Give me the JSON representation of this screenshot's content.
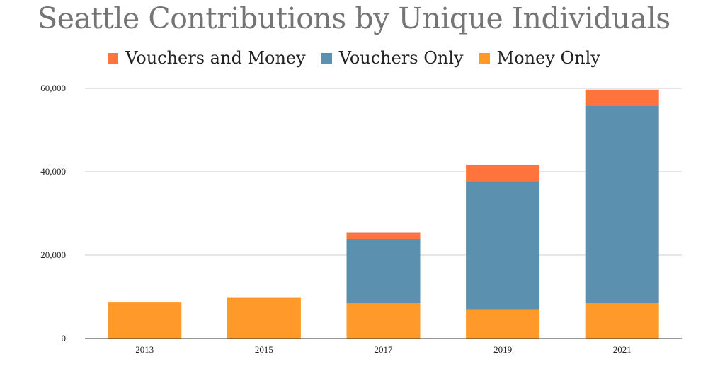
{
  "chart_data": {
    "type": "bar",
    "stacked": true,
    "title": "Seattle Contributions by Unique Individuals",
    "categories": [
      "2013",
      "2015",
      "2017",
      "2019",
      "2021"
    ],
    "series": [
      {
        "name": "Money Only",
        "color": "#ff9a2a",
        "values": [
          8800,
          9900,
          8600,
          7000,
          8600
        ]
      },
      {
        "name": "Vouchers Only",
        "color": "#5b91ae",
        "values": [
          0,
          0,
          15300,
          30700,
          47300
        ]
      },
      {
        "name": "Vouchers and Money",
        "color": "#ff743d",
        "values": [
          0,
          0,
          1600,
          4000,
          3800
        ]
      }
    ],
    "legend_order": [
      "Vouchers and Money",
      "Vouchers Only",
      "Money Only"
    ],
    "ylim": [
      0,
      60000
    ],
    "yticks": [
      0,
      20000,
      40000,
      60000
    ],
    "ytick_labels": [
      "0",
      "20,000",
      "40,000",
      "60,000"
    ],
    "grid": true,
    "legend_position": "top-center",
    "xlabel": "",
    "ylabel": ""
  }
}
